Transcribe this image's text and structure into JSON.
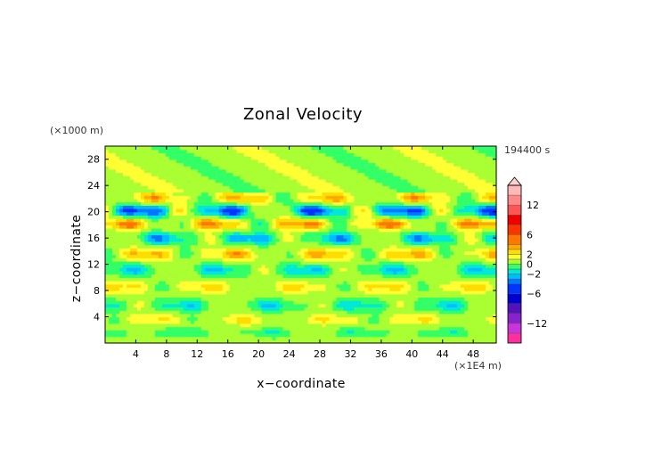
{
  "chart_data": {
    "type": "heatmap",
    "title": "Zonal Velocity",
    "xlabel": "x−coordinate",
    "ylabel": "z−coordinate",
    "x_unit": "(×1E4 m)",
    "y_unit": "(×1000 m)",
    "time_label": "194400 s",
    "xlim": [
      0,
      51
    ],
    "ylim": [
      0,
      30
    ],
    "x_ticks": [
      "4",
      "8",
      "12",
      "16",
      "20",
      "24",
      "28",
      "32",
      "36",
      "40",
      "44",
      "48"
    ],
    "y_ticks": [
      "4",
      "8",
      "12",
      "16",
      "20",
      "24",
      "28"
    ],
    "colorbar_ticks": [
      "12",
      "6",
      "2",
      "0",
      "−2",
      "−6",
      "−12"
    ],
    "colorbar_levels": [
      -16,
      -14,
      -12,
      -10,
      -8,
      -6,
      -4,
      -3,
      -2,
      -1,
      0,
      1,
      2,
      3,
      4,
      6,
      8,
      10,
      12,
      14,
      16
    ],
    "colorbar_colors": [
      "#ff2fa0",
      "#cc33dd",
      "#8822cc",
      "#5511bb",
      "#0000cc",
      "#0033ff",
      "#0077ff",
      "#00bbff",
      "#00e8d8",
      "#33ff66",
      "#aaff33",
      "#ffff33",
      "#ffdd00",
      "#ffaa00",
      "#ff7700",
      "#ff3300",
      "#ee0000",
      "#ff5555",
      "#ff8888",
      "#ffb8b8"
    ],
    "grid": false,
    "legend": "colorbar-right",
    "bands": [
      {
        "z": 22.2,
        "amp": 2.4,
        "width": 0.9,
        "phase": 0.3
      },
      {
        "z": 20.2,
        "amp": 4.0,
        "width": 0.9,
        "phase": 1.7
      },
      {
        "z": 18.2,
        "amp": 3.2,
        "width": 0.8,
        "phase": 3.1
      },
      {
        "z": 16.0,
        "amp": 2.6,
        "width": 0.9,
        "phase": 0.9
      },
      {
        "z": 13.6,
        "amp": 2.4,
        "width": 0.9,
        "phase": 2.4
      },
      {
        "z": 11.2,
        "amp": 2.0,
        "width": 0.9,
        "phase": 4.0
      },
      {
        "z": 8.6,
        "amp": 1.7,
        "width": 0.9,
        "phase": 5.2
      },
      {
        "z": 5.8,
        "amp": 1.8,
        "width": 0.9,
        "phase": 1.2
      },
      {
        "z": 3.6,
        "amp": 1.4,
        "width": 0.8,
        "phase": 3.6
      },
      {
        "z": 1.6,
        "amp": 1.1,
        "width": 0.7,
        "phase": 2.0
      }
    ]
  }
}
